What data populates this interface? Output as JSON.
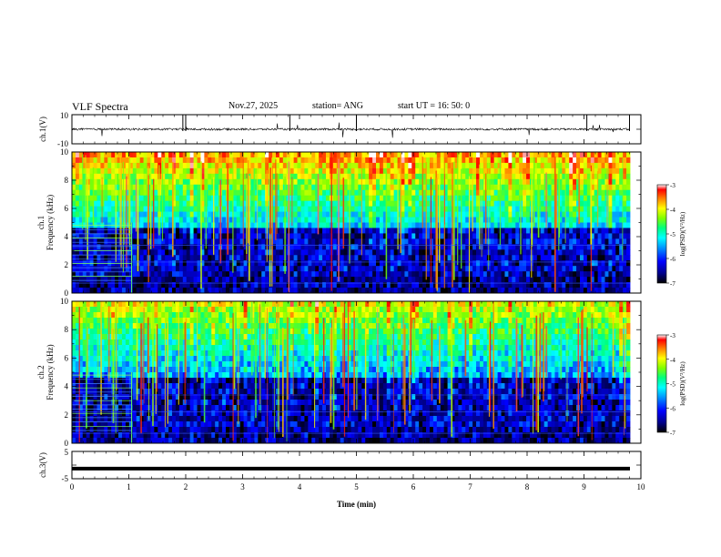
{
  "header": {
    "title": "VLF Spectra",
    "date": "Nov.27, 2025",
    "station": "station= ANG",
    "start_ut": "start  UT =   16: 50: 0"
  },
  "chart_data": {
    "type": "heatmap",
    "x": {
      "label": "Time  (min)",
      "range": [
        0,
        10
      ],
      "ticks": [
        "0",
        "1",
        "2",
        "3",
        "4",
        "5",
        "6",
        "7",
        "8",
        "9",
        "10"
      ]
    },
    "panels": [
      {
        "id": "ch1_wave",
        "type": "line",
        "ylabel": "ch.1(V)",
        "ylim": [
          -10,
          10
        ],
        "tick_labels": [
          "10",
          "-10"
        ],
        "baseline": 0,
        "note_visible": "waveform with impulsive spikes"
      },
      {
        "id": "ch1_spec",
        "type": "heatmap",
        "ylabel": "Frequency  (kHz)",
        "ylabel_prefix": "ch.1",
        "ylim": [
          0,
          10
        ],
        "tick_labels": [
          "0",
          "2",
          "4",
          "6",
          "8",
          "10"
        ]
      },
      {
        "id": "ch2_spec",
        "type": "heatmap",
        "ylabel": "Frequency  (kHz)",
        "ylabel_prefix": "ch.2",
        "ylim": [
          0,
          10
        ],
        "tick_labels": [
          "0",
          "2",
          "4",
          "6",
          "8",
          "10"
        ]
      },
      {
        "id": "ch3_wave",
        "type": "line",
        "ylabel": "ch.3(V)",
        "ylim": [
          -5,
          5
        ],
        "tick_labels": [
          "5",
          "-5"
        ],
        "constant_value": -1.3
      }
    ],
    "colorbar": {
      "label": "log(PSD)(V²/Hz)",
      "range": [
        -7,
        -3
      ],
      "tick_labels": [
        "-3",
        "-4",
        "-5",
        "-6",
        "-7"
      ],
      "colors": [
        "#000000",
        "#00008b",
        "#0000ff",
        "#0080ff",
        "#00ffff",
        "#00ff80",
        "#80ff00",
        "#ffff00",
        "#ff8000",
        "#ff0000",
        "#ffffff"
      ]
    }
  }
}
